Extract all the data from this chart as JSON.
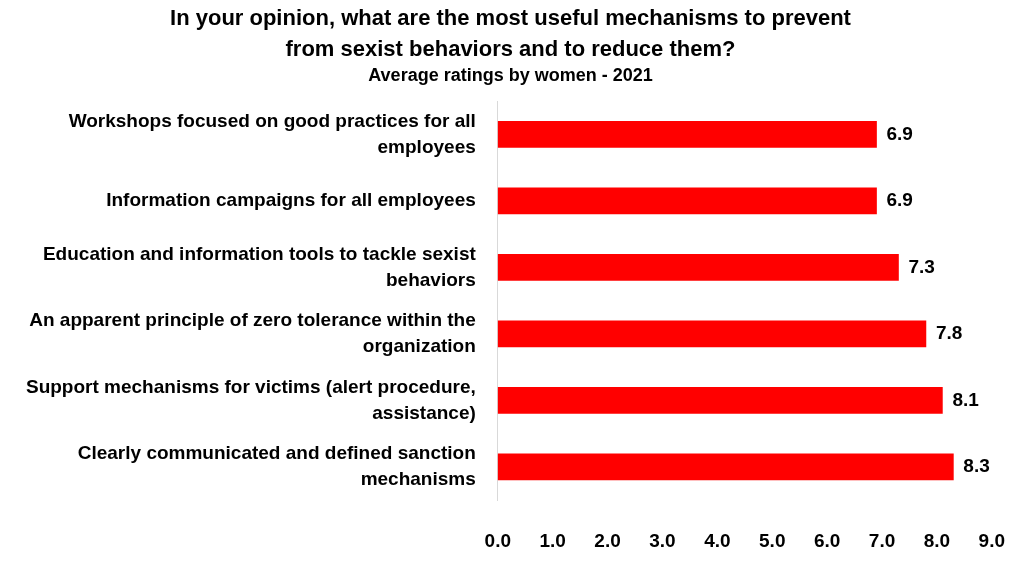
{
  "chart_data": {
    "type": "bar",
    "orientation": "horizontal",
    "title": "In your opinion, what are the most useful mechanisms to prevent from sexist behaviors and to reduce them?",
    "subtitle": "Average ratings by women - 2021",
    "categories": [
      "Workshops focused on good practices for all employees",
      "Information campaigns for all employees",
      "Education and information tools to tackle sexist behaviors",
      "An apparent principle of zero tolerance within the organization",
      "Support mechanisms for victims (alert procedure, assistance)",
      "Clearly communicated and defined sanction mechanisms"
    ],
    "values": [
      6.9,
      6.9,
      7.3,
      7.8,
      8.1,
      8.3
    ],
    "color": "#ff0000",
    "xlim": [
      0,
      9
    ],
    "xticks": [
      {
        "value": 0,
        "label": "0.0"
      },
      {
        "value": 1,
        "label": "1.0"
      },
      {
        "value": 2,
        "label": "2.0"
      },
      {
        "value": 3,
        "label": "3.0"
      },
      {
        "value": 4,
        "label": "4.0"
      },
      {
        "value": 5,
        "label": "5.0"
      },
      {
        "value": 6,
        "label": "6.0"
      },
      {
        "value": 7,
        "label": "7.0"
      },
      {
        "value": 8,
        "label": "8.0"
      },
      {
        "value": 9,
        "label": "9.0"
      }
    ],
    "data_labels": true,
    "grid": false,
    "legend": false
  }
}
